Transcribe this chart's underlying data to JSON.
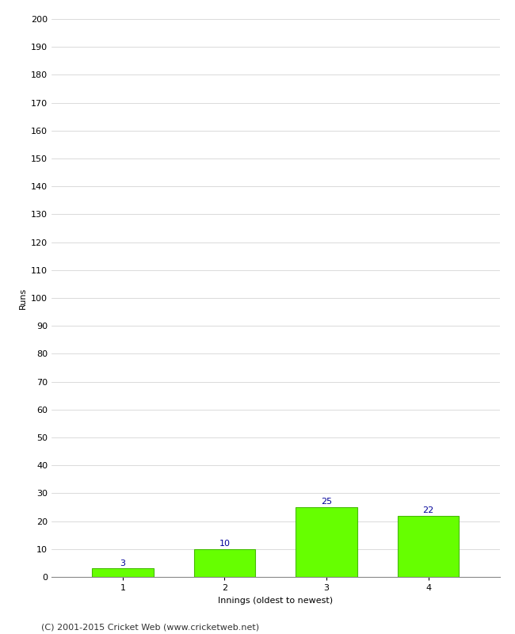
{
  "categories": [
    "1",
    "2",
    "3",
    "4"
  ],
  "values": [
    3,
    10,
    25,
    22
  ],
  "bar_color": "#66ff00",
  "bar_edge_color": "#44bb00",
  "label_color": "#000099",
  "ylabel": "Runs",
  "xlabel": "Innings (oldest to newest)",
  "ylim": [
    0,
    200
  ],
  "yticks": [
    0,
    10,
    20,
    30,
    40,
    50,
    60,
    70,
    80,
    90,
    100,
    110,
    120,
    130,
    140,
    150,
    160,
    170,
    180,
    190,
    200
  ],
  "background_color": "#ffffff",
  "grid_color": "#cccccc",
  "footer": "(C) 2001-2015 Cricket Web (www.cricketweb.net)",
  "label_fontsize": 8,
  "tick_fontsize": 8,
  "ylabel_fontsize": 8,
  "xlabel_fontsize": 8,
  "footer_fontsize": 8
}
